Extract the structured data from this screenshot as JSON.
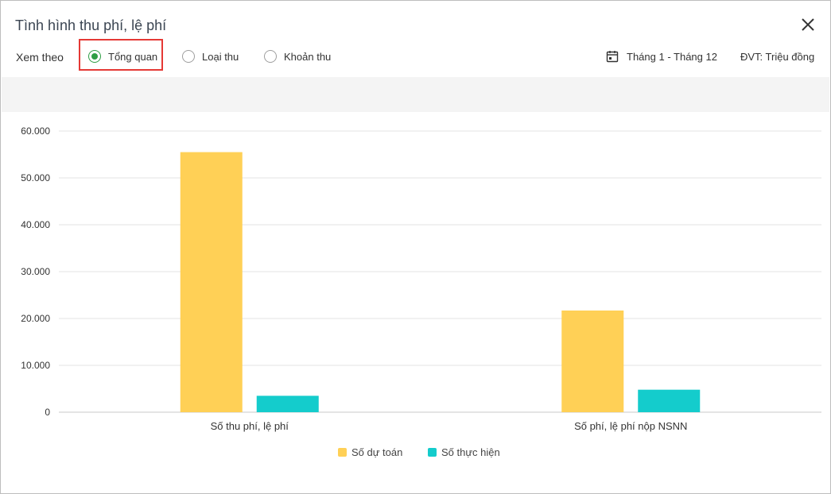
{
  "dialog": {
    "title": "Tình hình thu phí, lệ phí"
  },
  "toolbar": {
    "view_label": "Xem theo",
    "options": [
      {
        "label": "Tổng quan",
        "checked": true
      },
      {
        "label": "Loại thu",
        "checked": false
      },
      {
        "label": "Khoản thu",
        "checked": false
      }
    ],
    "period_label": "Tháng 1 - Tháng 12",
    "unit_label": "ĐVT: Triệu đồng"
  },
  "icons": {
    "close": "close-icon",
    "calendar": "calendar-icon"
  },
  "colors": {
    "accent": "#2e9e44",
    "highlight": "#e53935",
    "series_du_toan": "#ffd056",
    "series_thuc_hien": "#14cccc"
  },
  "chart_data": {
    "type": "bar",
    "categories": [
      "Số thu phí, lệ phí",
      "Số phí, lệ phí nộp NSNN"
    ],
    "series": [
      {
        "name": "Số dự toán",
        "values": [
          55500,
          21700
        ],
        "color": "#ffd056"
      },
      {
        "name": "Số thực hiện",
        "values": [
          3500,
          4800
        ],
        "color": "#14cccc"
      }
    ],
    "yticks": [
      "0",
      "10.000",
      "20.000",
      "30.000",
      "40.000",
      "50.000",
      "60.000"
    ],
    "ylim": [
      0,
      60000
    ],
    "grid": true,
    "legend_position": "bottom-center"
  }
}
